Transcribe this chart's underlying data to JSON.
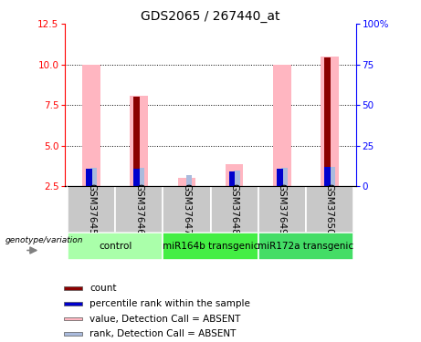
{
  "title": "GDS2065 / 267440_at",
  "samples": [
    "GSM37645",
    "GSM37646",
    "GSM37647",
    "GSM37648",
    "GSM37649",
    "GSM37650"
  ],
  "groups": [
    {
      "label": "control",
      "indices": [
        0,
        1
      ],
      "color": "#AAFFAA"
    },
    {
      "label": "miR164b transgenic",
      "indices": [
        2,
        3
      ],
      "color": "#44EE44"
    },
    {
      "label": "miR172a transgenic",
      "indices": [
        4,
        5
      ],
      "color": "#44DD66"
    }
  ],
  "ylim_left": [
    2.5,
    12.5
  ],
  "ylim_right": [
    0,
    100
  ],
  "yticks_left": [
    2.5,
    5.0,
    7.5,
    10.0,
    12.5
  ],
  "yticks_right": [
    0,
    25,
    50,
    75,
    100
  ],
  "ytick_labels_right": [
    "0",
    "25",
    "50",
    "75",
    "100%"
  ],
  "bar_value_absent": [
    10.0,
    8.1,
    3.05,
    3.85,
    10.0,
    10.5
  ],
  "bar_rank_absent": [
    3.62,
    3.62,
    3.18,
    3.48,
    3.62,
    3.72
  ],
  "bar_count": [
    0.0,
    8.05,
    0.0,
    0.0,
    0.0,
    10.45
  ],
  "bar_percentile": [
    3.58,
    3.58,
    0.0,
    3.42,
    3.58,
    3.68
  ],
  "count_color": "#8B0000",
  "percentile_color": "#0000CD",
  "value_absent_color": "#FFB6C1",
  "rank_absent_color": "#AABBDD",
  "bg_color": "#FFFFFF",
  "legend_items": [
    {
      "label": "count",
      "color": "#8B0000"
    },
    {
      "label": "percentile rank within the sample",
      "color": "#0000CD"
    },
    {
      "label": "value, Detection Call = ABSENT",
      "color": "#FFB6C1"
    },
    {
      "label": "rank, Detection Call = ABSENT",
      "color": "#AABBDD"
    }
  ]
}
